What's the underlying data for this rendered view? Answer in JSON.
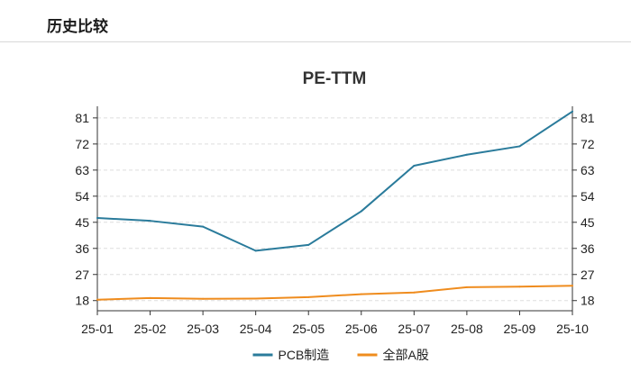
{
  "section": {
    "title": "历史比较"
  },
  "colors": {
    "pcb": "#2a7b9b",
    "a_share": "#ef8c1e",
    "grid": "#dddddd",
    "axis": "#333333"
  },
  "chart_data": {
    "type": "line",
    "title": "PE-TTM",
    "categories": [
      "25-01",
      "25-02",
      "25-03",
      "25-04",
      "25-05",
      "25-06",
      "25-07",
      "25-08",
      "25-09",
      "25-10"
    ],
    "series": [
      {
        "name": "PCB制造",
        "color": "#2a7b9b",
        "values": [
          46.5,
          45.5,
          43.5,
          35.2,
          37.2,
          48.8,
          64.5,
          68.3,
          71.2,
          83.2
        ]
      },
      {
        "name": "全部A股",
        "color": "#ef8c1e",
        "values": [
          18.3,
          18.9,
          18.6,
          18.7,
          19.2,
          20.2,
          20.8,
          22.6,
          22.8,
          23.1
        ]
      }
    ],
    "yticks": [
      18,
      27,
      36,
      45,
      54,
      63,
      72,
      81
    ],
    "ylim": [
      14.5,
      85
    ],
    "grid": true,
    "dual_y_axis": true,
    "legend_position": "bottom-center"
  }
}
